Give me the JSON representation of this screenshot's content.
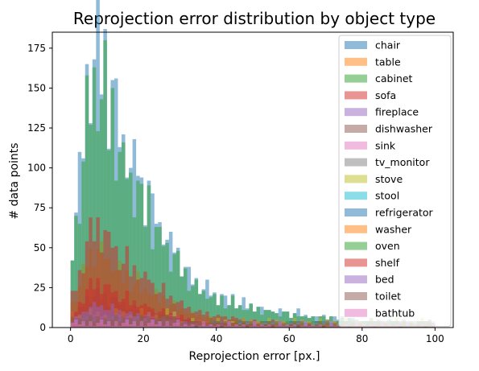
{
  "chart_data": {
    "type": "bar",
    "subtype": "overlaid-histogram",
    "title": "Reprojection error distribution by object type",
    "xlabel": "Reprojection error [px.]",
    "ylabel": "# data points",
    "xlim": [
      -5,
      105
    ],
    "ylim": [
      0,
      185
    ],
    "xticks": [
      0,
      20,
      40,
      60,
      80,
      100
    ],
    "yticks": [
      0,
      25,
      50,
      75,
      100,
      125,
      150,
      175
    ],
    "bin_width": 1,
    "bar_alpha": 0.5,
    "legend_position": "top-right",
    "grid": false,
    "series": [
      {
        "name": "chair",
        "color": "#1f77b4",
        "scale": 1.0,
        "shape": "main"
      },
      {
        "name": "table",
        "color": "#ff7f0e",
        "scale": 0.28,
        "shape": "main"
      },
      {
        "name": "cabinet",
        "color": "#2ca02c",
        "scale": 0.88,
        "shape": "main"
      },
      {
        "name": "sofa",
        "color": "#d62728",
        "scale": 0.36,
        "shape": "main"
      },
      {
        "name": "fireplace",
        "color": "#9467bd",
        "scale": 0.06,
        "shape": "flat"
      },
      {
        "name": "dishwasher",
        "color": "#8c564b",
        "scale": 0.12,
        "shape": "main"
      },
      {
        "name": "sink",
        "color": "#e377c2",
        "scale": 0.05,
        "shape": "flat"
      },
      {
        "name": "tv_monitor",
        "color": "#7f7f7f",
        "scale": 0.05,
        "shape": "flat"
      },
      {
        "name": "stove",
        "color": "#bcbd22",
        "scale": 0.07,
        "shape": "flat"
      },
      {
        "name": "stool",
        "color": "#17becf",
        "scale": 0.03,
        "shape": "flat"
      },
      {
        "name": "refrigerator",
        "color": "#1f77b4",
        "scale": 0.05,
        "shape": "flat"
      },
      {
        "name": "washer",
        "color": "#ff7f0e",
        "scale": 0.04,
        "shape": "flat"
      },
      {
        "name": "oven",
        "color": "#2ca02c",
        "scale": 0.05,
        "shape": "flat"
      },
      {
        "name": "shelf",
        "color": "#d62728",
        "scale": 0.16,
        "shape": "main"
      },
      {
        "name": "bed",
        "color": "#9467bd",
        "scale": 0.08,
        "shape": "main"
      },
      {
        "name": "toilet",
        "color": "#8c564b",
        "scale": 0.05,
        "shape": "flat"
      },
      {
        "name": "bathtub",
        "color": "#e377c2",
        "scale": 0.03,
        "shape": "flat"
      }
    ],
    "chair_bin_values": [
      53,
      72,
      92,
      118,
      150,
      160,
      168,
      175,
      162,
      170,
      140,
      155,
      130,
      125,
      110,
      118,
      100,
      98,
      105,
      85,
      80,
      92,
      70,
      72,
      60,
      65,
      55,
      50,
      52,
      45,
      40,
      38,
      32,
      30,
      28,
      26,
      24,
      25,
      22,
      20,
      18,
      21,
      17,
      16,
      19,
      15,
      14,
      16,
      13,
      14,
      12,
      13,
      11,
      12,
      10,
      12,
      9,
      10,
      11,
      9,
      8,
      9,
      10,
      8,
      7,
      8,
      7,
      6,
      8,
      7,
      6,
      7,
      6,
      5,
      6,
      5,
      6,
      5,
      5,
      4,
      5,
      4,
      5,
      4,
      4,
      5,
      3,
      4,
      3,
      4,
      3,
      4,
      3,
      3,
      2,
      3,
      2,
      3,
      2,
      2
    ]
  }
}
